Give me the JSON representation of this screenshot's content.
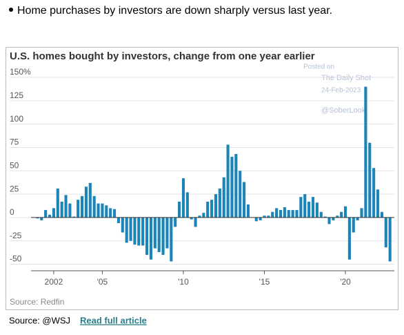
{
  "header": {
    "bullet": "Home purchases by investors are down sharply versus last year."
  },
  "chart_data": {
    "type": "bar",
    "title": "U.S. homes bought by investors, change from one year earlier",
    "annotations": [
      "Posted on",
      "The Daily Shot",
      "24-Feb-2023",
      "@SoberLook"
    ],
    "source": "Source: Redfin",
    "color": "#1b84b8",
    "x": [
      2001,
      2001.25,
      2001.5,
      2001.75,
      2002,
      2002.25,
      2002.5,
      2002.75,
      2003,
      2003.25,
      2003.5,
      2003.75,
      2004,
      2004.25,
      2004.5,
      2004.75,
      2005,
      2005.25,
      2005.5,
      2005.75,
      2006,
      2006.25,
      2006.5,
      2006.75,
      2007,
      2007.25,
      2007.5,
      2007.75,
      2008,
      2008.25,
      2008.5,
      2008.75,
      2009,
      2009.25,
      2009.5,
      2009.75,
      2010,
      2010.25,
      2010.5,
      2010.75,
      2011,
      2011.25,
      2011.5,
      2011.75,
      2012,
      2012.25,
      2012.5,
      2012.75,
      2013,
      2013.25,
      2013.5,
      2013.75,
      2014,
      2014.25,
      2014.5,
      2014.75,
      2015,
      2015.25,
      2015.5,
      2015.75,
      2016,
      2016.25,
      2016.5,
      2016.75,
      2017,
      2017.25,
      2017.5,
      2017.75,
      2018,
      2018.25,
      2018.5,
      2018.75,
      2019,
      2019.25,
      2019.5,
      2019.75,
      2020,
      2020.25,
      2020.5,
      2020.75,
      2021,
      2021.25,
      2021.5,
      2021.75,
      2022,
      2022.25,
      2022.5,
      2022.75
    ],
    "values": [
      -1,
      -3,
      8,
      3,
      10,
      31,
      17,
      24,
      15,
      1,
      19,
      23,
      33,
      37,
      23,
      15,
      15,
      13,
      10,
      9,
      -6,
      -16,
      -27,
      -25,
      -29,
      -30,
      -30,
      -40,
      -45,
      -33,
      -37,
      -40,
      -33,
      -47,
      -10,
      17,
      42,
      27,
      -2,
      -10,
      2,
      5,
      17,
      19,
      25,
      31,
      43,
      78,
      65,
      68,
      50,
      38,
      14,
      0,
      -4,
      -3,
      2,
      2,
      6,
      10,
      8,
      11,
      8,
      8,
      8,
      22,
      25,
      17,
      22,
      16,
      6,
      1,
      -7,
      -3,
      2,
      6,
      12,
      -45,
      -16,
      -3,
      10,
      140,
      80,
      53,
      30,
      6,
      -32,
      -47
    ],
    "xlim": [
      2000.6,
      2023.02
    ],
    "xticks": [
      2002,
      {
        "value": 2005,
        "label": "'05"
      },
      {
        "value": 2010,
        "label": "'10"
      },
      {
        "value": 2015,
        "label": "'15"
      },
      {
        "value": 2020,
        "label": "'20"
      }
    ],
    "ylim": [
      -57,
      150
    ],
    "yticks": [
      {
        "value": 150,
        "label": "150%"
      },
      125,
      100,
      75,
      50,
      25,
      0,
      -25,
      -50
    ],
    "grid": true
  },
  "footer": {
    "source": "Source: @WSJ",
    "link": "Read full article"
  }
}
